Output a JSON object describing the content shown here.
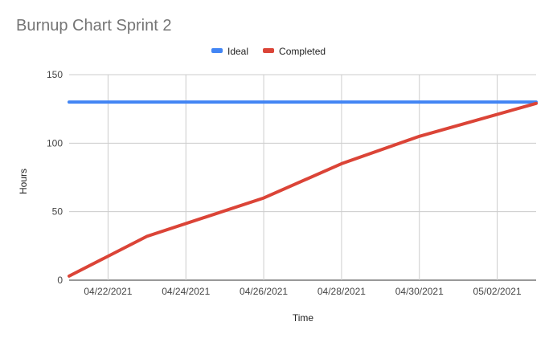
{
  "chart_data": {
    "type": "line",
    "title": "Burnup Chart Sprint 2",
    "xlabel": "Time",
    "ylabel": "Hours",
    "x_type": "date",
    "x_tick_labels": [
      "04/22/2021",
      "04/24/2021",
      "04/26/2021",
      "04/28/2021",
      "04/30/2021",
      "05/02/2021"
    ],
    "x_tick_dates": [
      "2021-04-22",
      "2021-04-24",
      "2021-04-26",
      "2021-04-28",
      "2021-04-30",
      "2021-05-02"
    ],
    "xlim": [
      "2021-04-21",
      "2021-05-03"
    ],
    "ylim": [
      0,
      150
    ],
    "y_ticks": [
      0,
      50,
      100,
      150
    ],
    "grid": true,
    "legend_position": "top-center",
    "series": [
      {
        "name": "Ideal",
        "color": "#4285f4",
        "points": [
          {
            "x": "2021-04-21",
            "y": 130
          },
          {
            "x": "2021-05-03",
            "y": 130
          }
        ]
      },
      {
        "name": "Completed",
        "color": "#db4437",
        "points": [
          {
            "x": "2021-04-21",
            "y": 3
          },
          {
            "x": "2021-04-23",
            "y": 32
          },
          {
            "x": "2021-04-26",
            "y": 60
          },
          {
            "x": "2021-04-28",
            "y": 85
          },
          {
            "x": "2021-04-30",
            "y": 105
          },
          {
            "x": "2021-05-03",
            "y": 129
          }
        ]
      }
    ]
  }
}
